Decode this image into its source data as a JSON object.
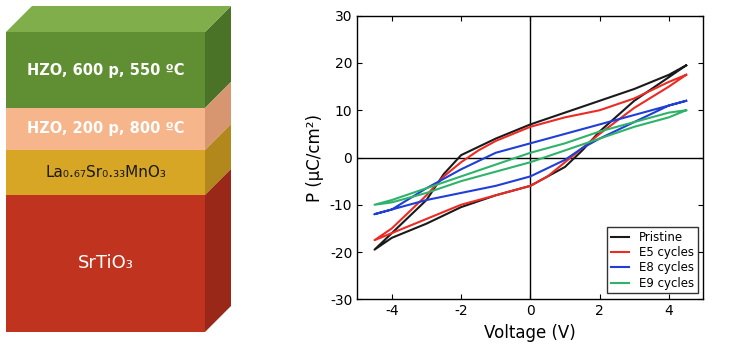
{
  "diagram": {
    "layers": [
      {
        "label": "HZO, 600 p, 550 ºC"
      },
      {
        "label": "HZO, 200 p, 800 ºC"
      },
      {
        "label": "La₀.₆₇Sr₀.₃₃MnO₃"
      },
      {
        "label": "SrTiO₃"
      }
    ]
  },
  "chart_data": {
    "type": "line",
    "x_label": "Voltage (V)",
    "y_label": "P (μC/cm²)",
    "xlim": [
      -5,
      5
    ],
    "xticks": [
      -4,
      -2,
      0,
      2,
      4
    ],
    "ylim": [
      -30,
      30
    ],
    "yticks": [
      -30,
      -20,
      -10,
      0,
      10,
      20,
      30
    ],
    "legend": "lower right",
    "series": [
      {
        "name": "Pristine",
        "color": "#1a1a1a",
        "x": [
          4.5,
          4,
          3,
          2,
          1,
          0,
          -1,
          -2,
          -2.5,
          -3,
          -4,
          -4.5,
          -4,
          -3,
          -2,
          -1,
          0,
          1,
          1.5,
          2,
          3,
          4,
          4.5
        ],
        "values": [
          19.5,
          17.5,
          14.5,
          12,
          9.5,
          7,
          4,
          0.5,
          -3.5,
          -9,
          -16,
          -19.5,
          -17,
          -14,
          -10.5,
          -8,
          -6,
          -2,
          1.5,
          5.5,
          12,
          17,
          19.5
        ]
      },
      {
        "name": "E5 cycles",
        "color": "#ee2a24",
        "x": [
          4.5,
          4,
          3,
          2,
          1,
          0,
          -1,
          -1.5,
          -2,
          -2.5,
          -3,
          -4,
          -4.5,
          -4,
          -3,
          -2,
          -1,
          0,
          0.5,
          1,
          1.5,
          2,
          3,
          4,
          4.5
        ],
        "values": [
          17.5,
          16,
          12.5,
          10,
          8.5,
          6.5,
          3.5,
          1.5,
          -1,
          -4,
          -8,
          -15,
          -17.5,
          -16,
          -13,
          -10,
          -8,
          -6,
          -4,
          -1,
          2,
          5,
          10.5,
          15,
          17.5
        ]
      },
      {
        "name": "E8 cycles",
        "color": "#1f3fd6",
        "x": [
          4.5,
          4,
          3,
          2,
          1,
          0,
          -1,
          -2,
          -3,
          -4,
          -4.5,
          -4,
          -3,
          -2,
          -1,
          0,
          1,
          1.5,
          2,
          3,
          4,
          4.5
        ],
        "values": [
          12,
          11,
          9,
          7,
          5,
          3,
          1,
          -2.5,
          -6.5,
          -11,
          -12,
          -11,
          -9,
          -7.5,
          -6,
          -4,
          -0.5,
          2,
          4,
          7.5,
          11,
          12
        ]
      },
      {
        "name": "E9 cycles",
        "color": "#2fb36a",
        "x": [
          4.5,
          4,
          3,
          2,
          1,
          0,
          -1,
          -2,
          -3,
          -4,
          -4.5,
          -4,
          -3,
          -2,
          -1,
          0,
          1,
          2,
          3,
          4,
          4.5
        ],
        "values": [
          10,
          9.5,
          7.5,
          5.5,
          3,
          1,
          -1.5,
          -4,
          -6.5,
          -9,
          -10,
          -9.5,
          -7.5,
          -5,
          -3,
          -1,
          1.5,
          4,
          6.5,
          8.5,
          10
        ]
      }
    ]
  }
}
